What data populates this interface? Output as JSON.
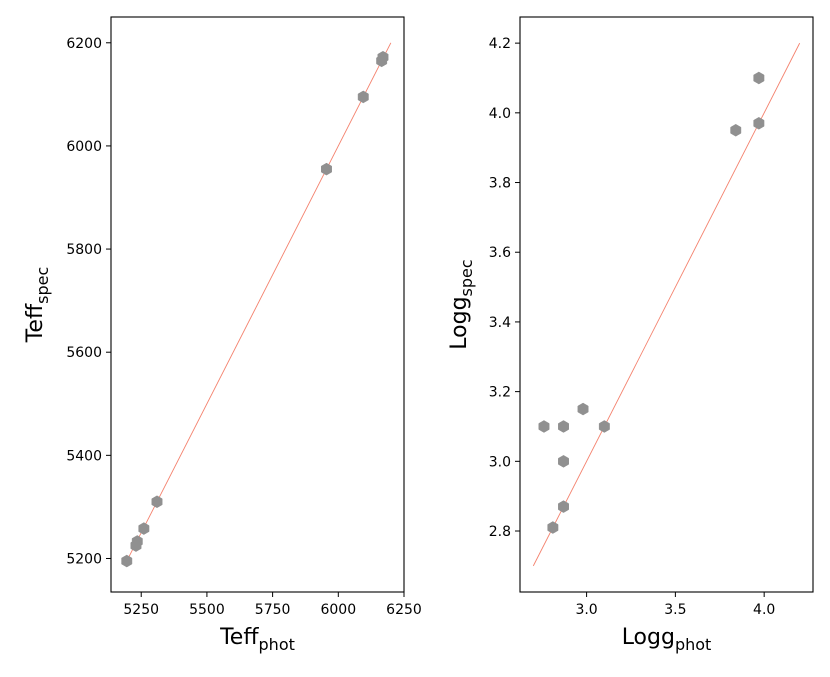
{
  "chart_data": [
    {
      "type": "scatter",
      "xlabel": {
        "main": "Teff",
        "sub": "phot"
      },
      "ylabel": {
        "main": "Teff",
        "sub": "spec"
      },
      "xlim": [
        5135,
        6250
      ],
      "ylim": [
        5135,
        6250
      ],
      "xticks": [
        5250,
        5500,
        5750,
        6000,
        6250
      ],
      "yticks": [
        5200,
        5400,
        5600,
        5800,
        6000,
        6200
      ],
      "marker": "hexagon",
      "marker_color": "#909090",
      "reference_line": {
        "x": [
          5195,
          6200
        ],
        "y": [
          5195,
          6200
        ],
        "color": "#f4826e"
      },
      "points": [
        {
          "x": 5195,
          "y": 5195
        },
        {
          "x": 5230,
          "y": 5225
        },
        {
          "x": 5235,
          "y": 5233
        },
        {
          "x": 5260,
          "y": 5258
        },
        {
          "x": 5310,
          "y": 5310
        },
        {
          "x": 5955,
          "y": 5955
        },
        {
          "x": 6095,
          "y": 6095
        },
        {
          "x": 6165,
          "y": 6165
        },
        {
          "x": 6170,
          "y": 6172
        }
      ]
    },
    {
      "type": "scatter",
      "xlabel": {
        "main": "Logg",
        "sub": "phot"
      },
      "ylabel": {
        "main": "Logg",
        "sub": "spec"
      },
      "xlim": [
        2.625,
        4.275
      ],
      "ylim": [
        2.625,
        4.275
      ],
      "xticks": [
        3.0,
        3.5,
        4.0
      ],
      "yticks": [
        2.8,
        3.0,
        3.2,
        3.4,
        3.6,
        3.8,
        4.0,
        4.2
      ],
      "marker": "hexagon",
      "marker_color": "#909090",
      "reference_line": {
        "x": [
          2.7,
          4.2
        ],
        "y": [
          2.7,
          4.2
        ],
        "color": "#f4826e"
      },
      "points": [
        {
          "x": 2.76,
          "y": 3.1
        },
        {
          "x": 2.81,
          "y": 2.81
        },
        {
          "x": 2.87,
          "y": 2.87
        },
        {
          "x": 2.87,
          "y": 3.0
        },
        {
          "x": 2.87,
          "y": 3.1
        },
        {
          "x": 2.98,
          "y": 3.15
        },
        {
          "x": 3.1,
          "y": 3.1
        },
        {
          "x": 3.84,
          "y": 3.95
        },
        {
          "x": 3.97,
          "y": 3.97
        },
        {
          "x": 3.97,
          "y": 4.1
        }
      ]
    }
  ]
}
